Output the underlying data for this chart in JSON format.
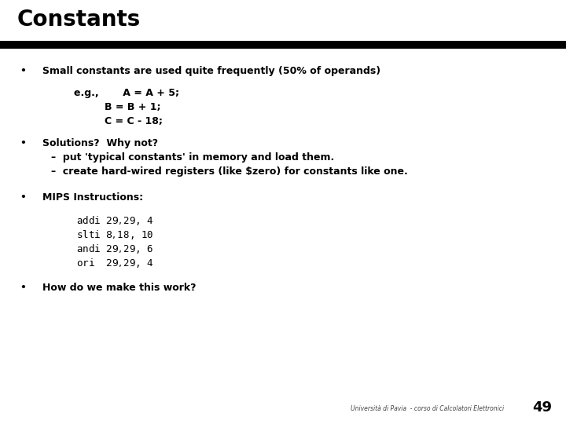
{
  "title": "Constants",
  "bg_color": "#ffffff",
  "title_color": "#000000",
  "bar_color": "#000000",
  "text_color": "#000000",
  "footer_text": "Università di Pavia  - corso di Calcolatori Elettronici",
  "page_number": "49",
  "bullet1_main": "Small constants are used quite frequently (50% of operands)",
  "bullet1_eg": "e.g.,       A = A + 5;",
  "bullet1_b": "                B = B + 1;",
  "bullet1_c": "                C = C - 18;",
  "bullet2_main": "Solutions?  Why not?",
  "bullet2_sub1": "–  put 'typical constants' in memory and load them.",
  "bullet2_sub2": "–  create hard-wired registers (like $zero) for constants like one.",
  "bullet3_main": "MIPS Instructions:",
  "code_line1": "addi $29, $29, 4",
  "code_line2": "slti $8, $18, 10",
  "code_line3": "andi $29, $29, 6",
  "code_line4": "ori  $29, $29, 4",
  "bullet4_main": "How do we make this work?"
}
